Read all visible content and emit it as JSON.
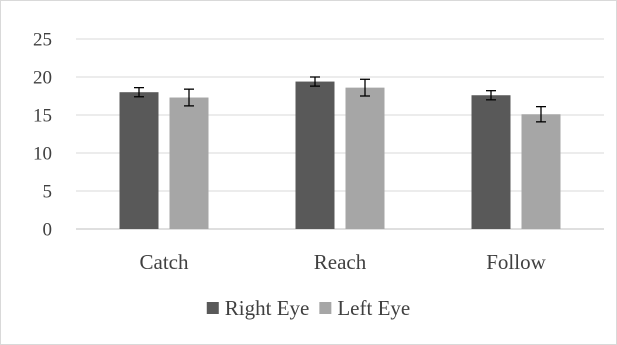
{
  "chart_data": {
    "type": "bar",
    "title": "",
    "xlabel": "",
    "ylabel": "",
    "categories": [
      "Catch",
      "Reach",
      "Follow"
    ],
    "series": [
      {
        "name": "Right Eye",
        "values": [
          18.0,
          19.4,
          17.6
        ],
        "errors": [
          0.6,
          0.6,
          0.6
        ],
        "color": "#595959"
      },
      {
        "name": "Left Eye",
        "values": [
          17.3,
          18.6,
          15.1
        ],
        "errors": [
          1.1,
          1.1,
          1.0
        ],
        "color": "#a6a6a6"
      }
    ],
    "ylim": [
      0,
      25
    ],
    "yticks": [
      0,
      5,
      10,
      15,
      20,
      25
    ],
    "grid": true,
    "legend": "bottom",
    "error_bars": true
  }
}
